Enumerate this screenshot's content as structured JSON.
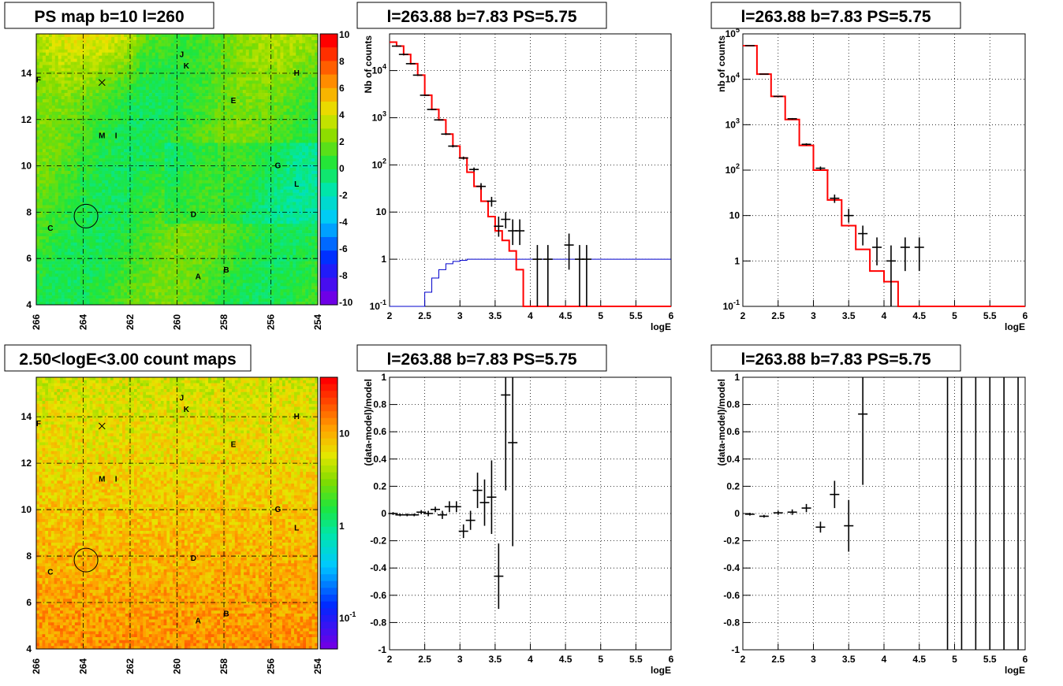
{
  "colors": {
    "model": "#ff0000",
    "background_curve": "#0000cc",
    "data": "#000000",
    "grid": "#000000"
  },
  "chart_data": [
    {
      "id": "ps-map",
      "type": "heatmap",
      "title": "PS map b=10 l=260",
      "x_ticks": [
        "266",
        "264",
        "262",
        "260",
        "258",
        "256",
        "254"
      ],
      "y_ticks": [
        "4",
        "6",
        "8",
        "10",
        "12",
        "14"
      ],
      "xlim": [
        266,
        254
      ],
      "ylim": [
        4,
        15.7
      ],
      "colorbar": {
        "scale": "linear",
        "range": [
          -10,
          10
        ],
        "labels": [
          "10",
          "8",
          "6",
          "4",
          "2",
          "0",
          "-2",
          "-4",
          "-6",
          "-8",
          "-10"
        ]
      },
      "sources": [
        {
          "label": "J",
          "l": 259.8,
          "b": 14.7
        },
        {
          "label": "K",
          "l": 259.6,
          "b": 14.2
        },
        {
          "label": "H",
          "l": 254.9,
          "b": 13.9
        },
        {
          "label": "F",
          "l": 265.9,
          "b": 13.6
        },
        {
          "label": "E",
          "l": 257.6,
          "b": 12.7
        },
        {
          "label": "M",
          "l": 263.2,
          "b": 11.2
        },
        {
          "label": "I",
          "l": 262.6,
          "b": 11.2
        },
        {
          "label": "G",
          "l": 255.7,
          "b": 9.9
        },
        {
          "label": "L",
          "l": 254.9,
          "b": 9.1
        },
        {
          "label": "D",
          "l": 259.3,
          "b": 7.8
        },
        {
          "label": "C",
          "l": 265.4,
          "b": 7.2
        },
        {
          "label": "B",
          "l": 257.9,
          "b": 5.4
        },
        {
          "label": "A",
          "l": 259.1,
          "b": 5.1
        }
      ],
      "cross": {
        "l": 263.2,
        "b": 13.6
      },
      "circle": {
        "l": 263.88,
        "b": 7.83
      }
    },
    {
      "id": "spectrum-1",
      "type": "line",
      "title": "l=263.88 b=7.83 PS=5.75",
      "xlabel": "logE",
      "ylabel": "Nb of counts",
      "xlim": [
        2,
        6
      ],
      "ylim": [
        0.1,
        60000
      ],
      "yscale": "log",
      "x_ticks": [
        "2",
        "2.5",
        "3",
        "3.5",
        "4",
        "4.5",
        "5",
        "5.5",
        "6"
      ],
      "y_ticks": [
        "10^-1",
        "1",
        "10",
        "10^2",
        "10^3",
        "10^4"
      ],
      "bin_edges": [
        2,
        2.1,
        2.2,
        2.3,
        2.4,
        2.5,
        2.6,
        2.7,
        2.8,
        2.9,
        3,
        3.1,
        3.2,
        3.3,
        3.4,
        3.5,
        3.6,
        3.7,
        3.8,
        3.9,
        4,
        4.1,
        4.2,
        4.3,
        4.4,
        4.5,
        4.6,
        4.7,
        4.8,
        4.9,
        5,
        5.1,
        5.2,
        5.3,
        5.4,
        5.5,
        5.6,
        5.7,
        5.8,
        5.9,
        6
      ],
      "model": [
        40000,
        33000,
        22000,
        14000,
        8000,
        3000,
        1500,
        900,
        450,
        250,
        140,
        70,
        35,
        17,
        8,
        4,
        2.5,
        1.5,
        0.6,
        0.1,
        0.1,
        0.1,
        0.1,
        0.1,
        0.1,
        0.1,
        0.1,
        0.1,
        0.1,
        0.1,
        0.1,
        0.1,
        0.1,
        0.1,
        0.1,
        0.1,
        0.1,
        0.1,
        0.1,
        0.1
      ],
      "background": [
        0.1,
        0.1,
        0.1,
        0.1,
        0.1,
        0.2,
        0.4,
        0.6,
        0.8,
        0.9,
        0.95,
        1,
        1,
        1,
        1,
        1,
        1,
        1,
        1,
        1,
        1,
        1,
        1,
        1,
        1,
        1,
        1,
        1,
        1,
        1,
        1,
        1,
        1,
        1,
        1,
        1,
        1,
        1,
        1,
        1
      ],
      "points": [
        {
          "x": 2.1,
          "y": 33000,
          "lo": 32000,
          "hi": 34000
        },
        {
          "x": 2.2,
          "y": 22000,
          "lo": 21000,
          "hi": 23000
        },
        {
          "x": 2.3,
          "y": 14000,
          "lo": 13500,
          "hi": 14500
        },
        {
          "x": 2.4,
          "y": 8000,
          "lo": 7700,
          "hi": 8300
        },
        {
          "x": 2.5,
          "y": 3000,
          "lo": 2900,
          "hi": 3100
        },
        {
          "x": 2.6,
          "y": 1500,
          "lo": 1450,
          "hi": 1550
        },
        {
          "x": 2.7,
          "y": 900,
          "lo": 870,
          "hi": 930
        },
        {
          "x": 2.8,
          "y": 450,
          "lo": 430,
          "hi": 470
        },
        {
          "x": 2.9,
          "y": 250,
          "lo": 235,
          "hi": 265
        },
        {
          "x": 3.05,
          "y": 140,
          "lo": 130,
          "hi": 150
        },
        {
          "x": 3.2,
          "y": 80,
          "lo": 72,
          "hi": 88
        },
        {
          "x": 3.3,
          "y": 35,
          "lo": 30,
          "hi": 41
        },
        {
          "x": 3.45,
          "y": 17,
          "lo": 13,
          "hi": 21
        },
        {
          "x": 3.55,
          "y": 5,
          "lo": 3,
          "hi": 8
        },
        {
          "x": 3.65,
          "y": 7,
          "lo": 4.5,
          "hi": 10
        },
        {
          "x": 3.75,
          "y": 4,
          "lo": 2,
          "hi": 7
        },
        {
          "x": 3.85,
          "y": 4,
          "lo": 2,
          "hi": 7
        },
        {
          "x": 4.1,
          "y": 1,
          "lo": 0.1,
          "hi": 2
        },
        {
          "x": 4.25,
          "y": 1,
          "lo": 0.1,
          "hi": 2
        },
        {
          "x": 4.55,
          "y": 2,
          "lo": 0.6,
          "hi": 3.5
        },
        {
          "x": 4.7,
          "y": 1,
          "lo": 0.1,
          "hi": 2
        },
        {
          "x": 4.8,
          "y": 1,
          "lo": 0.1,
          "hi": 2
        }
      ]
    },
    {
      "id": "spectrum-2",
      "type": "line",
      "title": "l=263.88 b=7.83 PS=5.75",
      "xlabel": "logE",
      "ylabel": "nb of counts",
      "xlim": [
        2,
        6
      ],
      "ylim": [
        0.1,
        100000
      ],
      "yscale": "log",
      "x_ticks": [
        "2",
        "2.5",
        "3",
        "3.5",
        "4",
        "4.5",
        "5",
        "5.5",
        "6"
      ],
      "y_ticks": [
        "10^-1",
        "1",
        "10",
        "10^2",
        "10^3",
        "10^4",
        "10^5"
      ],
      "bin_edges": [
        2,
        2.2,
        2.4,
        2.6,
        2.8,
        3,
        3.2,
        3.4,
        3.6,
        3.8,
        4,
        4.2,
        4.4,
        4.6,
        4.8,
        5,
        5.2,
        5.4,
        5.6,
        5.8,
        6
      ],
      "model": [
        55000,
        13000,
        4200,
        1300,
        350,
        100,
        22,
        6,
        1.8,
        0.6,
        0.35,
        0.1,
        0.1,
        0.1,
        0.1,
        0.1,
        0.1,
        0.1,
        0.1,
        0.1
      ],
      "points": [
        {
          "x": 2.1,
          "y": 55000,
          "lo": 54000,
          "hi": 56000
        },
        {
          "x": 2.3,
          "y": 13000,
          "lo": 12800,
          "hi": 13200
        },
        {
          "x": 2.5,
          "y": 4200,
          "lo": 4100,
          "hi": 4300
        },
        {
          "x": 2.7,
          "y": 1350,
          "lo": 1300,
          "hi": 1400
        },
        {
          "x": 2.9,
          "y": 370,
          "lo": 350,
          "hi": 390
        },
        {
          "x": 3.1,
          "y": 110,
          "lo": 100,
          "hi": 120
        },
        {
          "x": 3.3,
          "y": 24,
          "lo": 19,
          "hi": 29
        },
        {
          "x": 3.5,
          "y": 10,
          "lo": 7,
          "hi": 14
        },
        {
          "x": 3.7,
          "y": 4,
          "lo": 2.2,
          "hi": 6
        },
        {
          "x": 3.9,
          "y": 2,
          "lo": 0.8,
          "hi": 3.3
        },
        {
          "x": 4.1,
          "y": 1,
          "lo": 0.1,
          "hi": 2.2
        },
        {
          "x": 4.3,
          "y": 2,
          "lo": 0.6,
          "hi": 3.3
        },
        {
          "x": 4.5,
          "y": 2,
          "lo": 0.6,
          "hi": 3.3
        }
      ]
    },
    {
      "id": "count-map",
      "type": "heatmap",
      "title": "2.50<logE<3.00 count maps",
      "x_ticks": [
        "266",
        "264",
        "262",
        "260",
        "258",
        "256",
        "254"
      ],
      "y_ticks": [
        "4",
        "6",
        "8",
        "10",
        "12",
        "14"
      ],
      "xlim": [
        266,
        254
      ],
      "ylim": [
        4,
        15.7
      ],
      "colorbar": {
        "scale": "log",
        "labels": [
          "10",
          "1",
          "10^-1"
        ]
      },
      "sources": [
        {
          "label": "J",
          "l": 259.8,
          "b": 14.7
        },
        {
          "label": "K",
          "l": 259.6,
          "b": 14.2
        },
        {
          "label": "H",
          "l": 254.9,
          "b": 13.9
        },
        {
          "label": "F",
          "l": 265.9,
          "b": 13.6
        },
        {
          "label": "E",
          "l": 257.6,
          "b": 12.7
        },
        {
          "label": "M",
          "l": 263.2,
          "b": 11.2
        },
        {
          "label": "I",
          "l": 262.6,
          "b": 11.2
        },
        {
          "label": "G",
          "l": 255.7,
          "b": 9.9
        },
        {
          "label": "L",
          "l": 254.9,
          "b": 9.1
        },
        {
          "label": "D",
          "l": 259.3,
          "b": 7.8
        },
        {
          "label": "C",
          "l": 265.4,
          "b": 7.2
        },
        {
          "label": "B",
          "l": 257.9,
          "b": 5.4
        },
        {
          "label": "A",
          "l": 259.1,
          "b": 5.1
        }
      ],
      "cross": {
        "l": 263.2,
        "b": 13.6
      },
      "circle": {
        "l": 263.88,
        "b": 7.83
      }
    },
    {
      "id": "residual-1",
      "type": "scatter",
      "title": "l=263.88 b=7.83 PS=5.75",
      "xlabel": "logE",
      "ylabel": "(data-model)/model",
      "xlim": [
        2,
        6
      ],
      "ylim": [
        -1,
        1
      ],
      "x_ticks": [
        "2",
        "2.5",
        "3",
        "3.5",
        "4",
        "4.5",
        "5",
        "5.5",
        "6"
      ],
      "y_ticks": [
        "-1",
        "-0.8",
        "-0.6",
        "-0.4",
        "-0.2",
        "0",
        "0.2",
        "0.4",
        "0.6",
        "0.8",
        "1"
      ],
      "points": [
        {
          "x": 2.05,
          "y": 0,
          "e": 0.01
        },
        {
          "x": 2.15,
          "y": -0.01,
          "e": 0.01
        },
        {
          "x": 2.25,
          "y": -0.01,
          "e": 0.01
        },
        {
          "x": 2.35,
          "y": -0.01,
          "e": 0.01
        },
        {
          "x": 2.45,
          "y": 0.01,
          "e": 0.015
        },
        {
          "x": 2.55,
          "y": 0,
          "e": 0.02
        },
        {
          "x": 2.65,
          "y": 0.03,
          "e": 0.02
        },
        {
          "x": 2.75,
          "y": -0.01,
          "e": 0.03
        },
        {
          "x": 2.85,
          "y": 0.05,
          "e": 0.04
        },
        {
          "x": 2.95,
          "y": 0.05,
          "e": 0.04
        },
        {
          "x": 3.05,
          "y": -0.13,
          "e": 0.05
        },
        {
          "x": 3.15,
          "y": -0.05,
          "e": 0.07
        },
        {
          "x": 3.25,
          "y": 0.17,
          "e": 0.13
        },
        {
          "x": 3.35,
          "y": 0.08,
          "e": 0.17
        },
        {
          "x": 3.45,
          "y": 0.12,
          "e": 0.27
        },
        {
          "x": 3.55,
          "y": -0.46,
          "e": 0.24
        },
        {
          "x": 3.65,
          "y": 0.87,
          "e": 0.7
        },
        {
          "x": 3.75,
          "y": 0.52,
          "e": 0.76
        }
      ]
    },
    {
      "id": "residual-2",
      "type": "scatter",
      "title": "l=263.88 b=7.83 PS=5.75",
      "xlabel": "logE",
      "ylabel": "(data-model)/model",
      "xlim": [
        2,
        6
      ],
      "ylim": [
        -1,
        1
      ],
      "x_ticks": [
        "2",
        "2.5",
        "3",
        "3.5",
        "4",
        "4.5",
        "5",
        "5.5",
        "6"
      ],
      "y_ticks": [
        "-1",
        "-0.8",
        "-0.6",
        "-0.4",
        "-0.2",
        "0",
        "0.2",
        "0.4",
        "0.6",
        "0.8",
        "1"
      ],
      "points": [
        {
          "x": 2.1,
          "y": -0.005,
          "e": 0.01
        },
        {
          "x": 2.3,
          "y": -0.02,
          "e": 0.01
        },
        {
          "x": 2.5,
          "y": 0.005,
          "e": 0.015
        },
        {
          "x": 2.7,
          "y": 0.01,
          "e": 0.02
        },
        {
          "x": 2.9,
          "y": 0.04,
          "e": 0.03
        },
        {
          "x": 3.1,
          "y": -0.1,
          "e": 0.04
        },
        {
          "x": 3.3,
          "y": 0.14,
          "e": 0.1
        },
        {
          "x": 3.5,
          "y": -0.09,
          "e": 0.19
        },
        {
          "x": 3.7,
          "y": 0.73,
          "e": 0.52
        }
      ],
      "full_range_bars_x": [
        4.9,
        5.1,
        5.3,
        5.5,
        5.7,
        5.9
      ]
    }
  ]
}
